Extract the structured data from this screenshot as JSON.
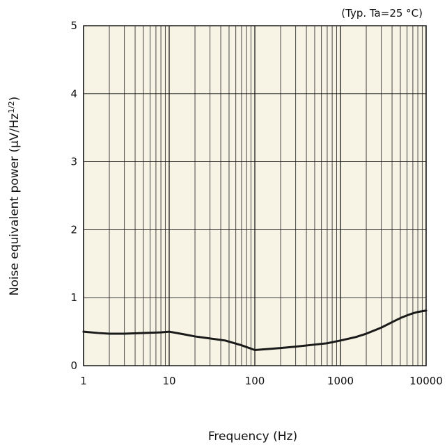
{
  "chart_data": {
    "type": "line",
    "annotation": "(Typ. Ta=25 °C)",
    "xlabel": "Frequency (Hz)",
    "ylabel": "Noise equivalent power (µV/Hz",
    "ylabel_sup": "1/2",
    "ylabel_close": ")",
    "x_scale": "log",
    "xlim": [
      1,
      10000
    ],
    "ylim": [
      0,
      5
    ],
    "x_ticks": [
      1,
      10,
      100,
      1000,
      10000
    ],
    "x_tick_labels": [
      "1",
      "10",
      "100",
      "1000",
      "10000"
    ],
    "y_ticks": [
      0,
      1,
      2,
      3,
      4,
      5
    ],
    "y_tick_labels": [
      "0",
      "1",
      "2",
      "3",
      "4",
      "5"
    ],
    "grid": true,
    "plot_background": "#f7f4e6",
    "grid_color": "#1a1a1a",
    "line_color": "#1a1a1a",
    "series": [
      {
        "x": [
          1,
          1.5,
          2,
          3,
          5,
          8,
          10,
          15,
          20,
          30,
          45,
          70,
          100,
          200,
          300,
          500,
          700,
          1000,
          1500,
          2000,
          3000,
          4000,
          5000,
          6000,
          7000,
          8000,
          10000
        ],
        "y": [
          0.5,
          0.48,
          0.47,
          0.47,
          0.48,
          0.49,
          0.5,
          0.46,
          0.43,
          0.4,
          0.37,
          0.3,
          0.23,
          0.26,
          0.28,
          0.31,
          0.33,
          0.37,
          0.42,
          0.47,
          0.56,
          0.64,
          0.7,
          0.74,
          0.77,
          0.79,
          0.81
        ]
      }
    ]
  }
}
